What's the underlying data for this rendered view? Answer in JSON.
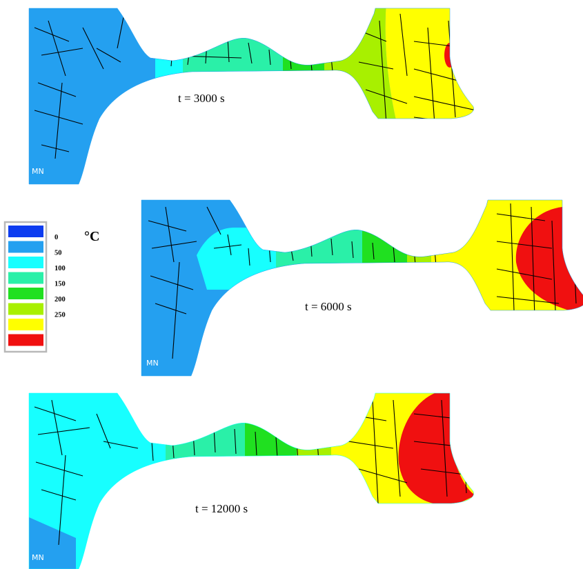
{
  "panels": [
    {
      "time_label": "t = 3000 s",
      "corner_mark": "MN"
    },
    {
      "time_label": "t = 6000 s",
      "corner_mark": "MN"
    },
    {
      "time_label": "t = 12000 s",
      "corner_mark": "MN"
    }
  ],
  "legend": {
    "unit": "°C",
    "entries": [
      {
        "label": "0",
        "color": "#0d3cf0"
      },
      {
        "label": "50",
        "color": "#24a0f0"
      },
      {
        "label": "100",
        "color": "#17ffff"
      },
      {
        "label": "150",
        "color": "#2af0a8"
      },
      {
        "label": "200",
        "color": "#20e020"
      },
      {
        "label": "250",
        "color": "#a8f000"
      },
      {
        "label": "",
        "color": "#ffff00"
      },
      {
        "label": "",
        "color": "#f01010"
      }
    ],
    "frame_color": "#b8b8b8"
  },
  "colors": {
    "blue": "#24a0f0",
    "cyan": "#17ffff",
    "teal": "#2af0a8",
    "green": "#20e020",
    "lime": "#a8f000",
    "yellow": "#ffff00",
    "red": "#f01010"
  }
}
